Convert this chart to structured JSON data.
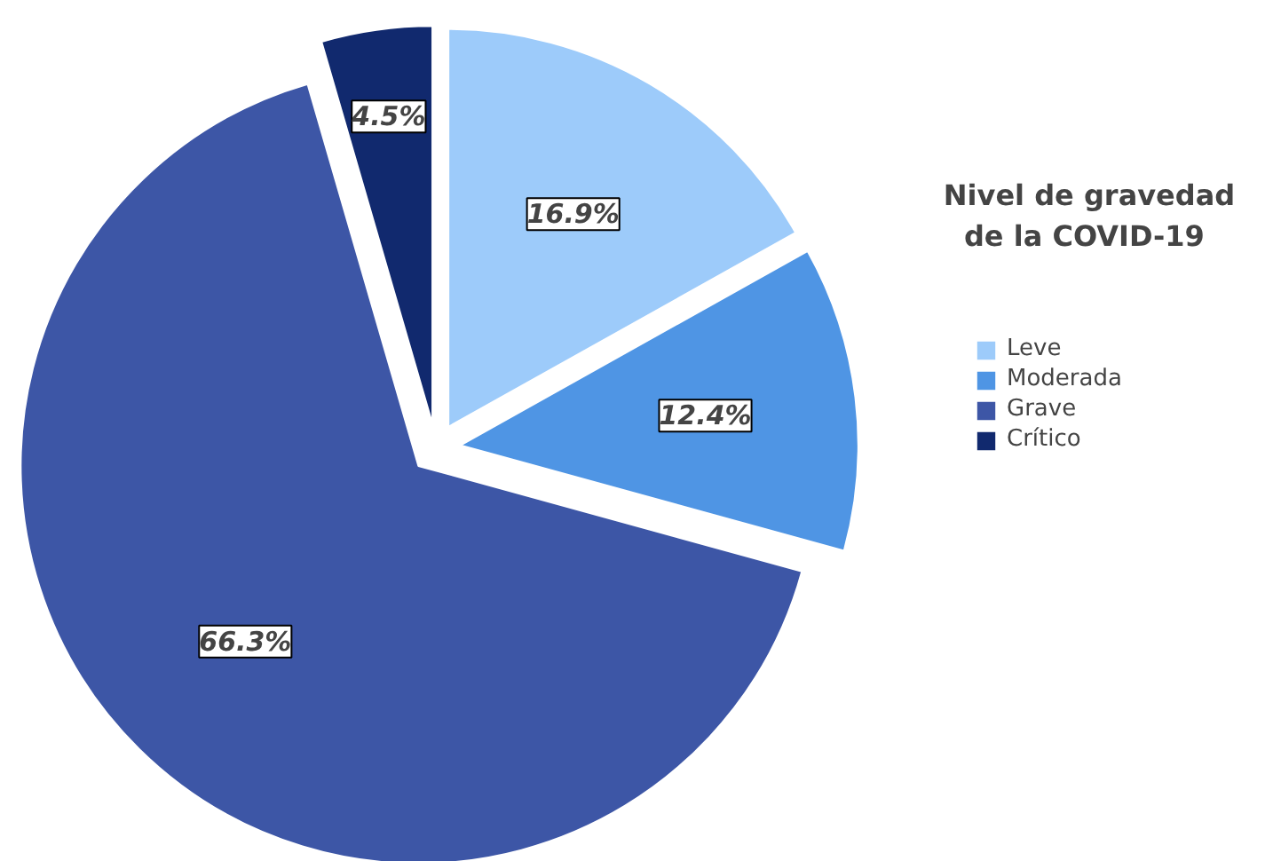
{
  "chart_data": {
    "type": "pie",
    "legend_title": "Nivel de gravedad\nde la  COVID-19",
    "categories": [
      "Leve",
      "Moderada",
      "Grave",
      "Crítico"
    ],
    "values": [
      16.9,
      12.4,
      66.3,
      4.5
    ],
    "colors": [
      "#9dcbfa",
      "#4f95e4",
      "#3d56a6",
      "#11296e"
    ],
    "value_labels": [
      "16.9%",
      "12.4%",
      "66.3%",
      "4.5%"
    ],
    "legend": "right"
  }
}
